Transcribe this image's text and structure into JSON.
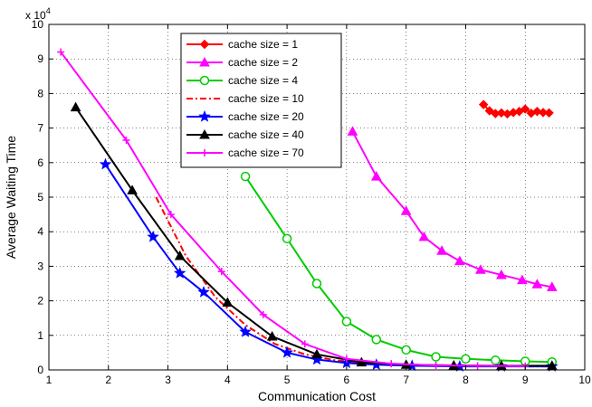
{
  "chart_data": {
    "type": "line",
    "title": "",
    "xlabel": "Communication Cost",
    "ylabel": "Average Waiting Time",
    "y_multiplier_label": "x 10",
    "y_multiplier_exponent": "4",
    "xlim": [
      1,
      10
    ],
    "ylim": [
      0,
      10
    ],
    "x_ticks": [
      "1",
      "2",
      "3",
      "4",
      "5",
      "6",
      "7",
      "8",
      "9",
      "10"
    ],
    "y_ticks": [
      "0",
      "1",
      "2",
      "3",
      "4",
      "5",
      "6",
      "7",
      "8",
      "9",
      "10"
    ],
    "grid": true,
    "legend_position": "top-center",
    "series": [
      {
        "name": "cache size = 1",
        "color": "#ff0000",
        "marker": "diamond",
        "dash": "solid",
        "x": [
          8.3,
          8.4,
          8.5,
          8.6,
          8.7,
          8.8,
          8.9,
          9.0,
          9.1,
          9.2,
          9.3,
          9.4
        ],
        "y": [
          7.68,
          7.5,
          7.42,
          7.44,
          7.41,
          7.45,
          7.48,
          7.55,
          7.43,
          7.48,
          7.45,
          7.44
        ]
      },
      {
        "name": "cache size = 2",
        "color": "#ff00ff",
        "marker": "triangle",
        "dash": "solid",
        "x": [
          6.1,
          6.5,
          7.0,
          7.3,
          7.6,
          7.9,
          8.25,
          8.6,
          8.95,
          9.2,
          9.45
        ],
        "y": [
          6.9,
          5.6,
          4.6,
          3.85,
          3.45,
          3.15,
          2.9,
          2.75,
          2.6,
          2.48,
          2.4
        ]
      },
      {
        "name": "cache size = 4",
        "color": "#00cc00",
        "marker": "circle",
        "dash": "solid",
        "x": [
          4.3,
          5.0,
          5.5,
          6.0,
          6.5,
          7.0,
          7.5,
          8.0,
          8.5,
          9.0,
          9.45
        ],
        "y": [
          5.6,
          3.8,
          2.5,
          1.4,
          0.88,
          0.58,
          0.38,
          0.32,
          0.28,
          0.25,
          0.23
        ]
      },
      {
        "name": "cache size = 10",
        "color": "#ff0000",
        "marker": "none",
        "dash": "dashdot",
        "x": [
          2.8,
          3.3,
          3.8,
          4.3,
          4.8,
          5.3,
          5.8,
          6.3,
          7.0,
          8.0,
          9.45
        ],
        "y": [
          5.0,
          3.3,
          2.1,
          1.3,
          0.75,
          0.45,
          0.28,
          0.2,
          0.13,
          0.11,
          0.1
        ]
      },
      {
        "name": "cache size = 20",
        "color": "#0000ff",
        "marker": "star",
        "dash": "solid",
        "x": [
          1.95,
          2.75,
          3.2,
          3.6,
          4.3,
          5.0,
          5.5,
          6.0,
          6.5,
          7.1,
          7.9,
          8.6,
          9.45
        ],
        "y": [
          5.95,
          3.85,
          2.8,
          2.25,
          1.1,
          0.5,
          0.3,
          0.2,
          0.15,
          0.12,
          0.1,
          0.1,
          0.1
        ]
      },
      {
        "name": "cache size = 40",
        "color": "#000000",
        "marker": "triangle",
        "dash": "solid",
        "x": [
          1.45,
          2.4,
          3.2,
          4.0,
          4.75,
          5.5,
          6.25,
          7.0,
          7.8,
          8.6,
          9.45
        ],
        "y": [
          7.6,
          5.2,
          3.3,
          1.95,
          0.97,
          0.45,
          0.22,
          0.15,
          0.13,
          0.12,
          0.12
        ]
      },
      {
        "name": "cache size = 70",
        "color": "#ff00ff",
        "marker": "plus",
        "dash": "solid",
        "x": [
          1.2,
          2.3,
          3.05,
          3.9,
          4.6,
          5.3,
          6.0,
          6.75,
          7.5,
          8.2,
          9.0
        ],
        "y": [
          9.2,
          6.65,
          4.5,
          2.85,
          1.6,
          0.75,
          0.32,
          0.18,
          0.13,
          0.12,
          0.11
        ]
      }
    ]
  }
}
